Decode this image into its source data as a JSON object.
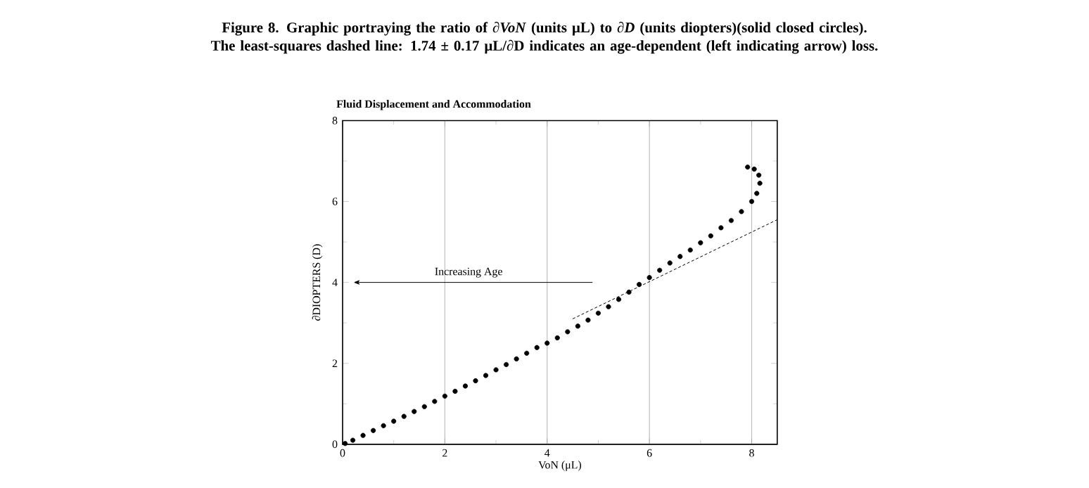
{
  "chart_data": {
    "type": "scatter",
    "title": "Fluid Displacement and Accommodation",
    "xlabel": "VoN (μL)",
    "ylabel": "∂DIOPTERS (D)",
    "xlim": [
      0,
      8.5
    ],
    "ylim": [
      0,
      8
    ],
    "xticks": [
      0,
      2,
      4,
      6,
      8
    ],
    "yticks": [
      0,
      2,
      4,
      6,
      8
    ],
    "grid": "x",
    "marker": "circle",
    "annotations": [
      "Figure 8. Graphic portraying the ratio of *∂VoN* (units µL) to *∂D* (units diopters)(solid closed circles). The least-squares dashed line: 1.74 ± 0.17 µL/∂D indicates an age-dependent (left indicating arrow) loss.",
      "Increasing Age"
    ],
    "series": [
      {
        "color": "#000000",
        "x": [
          0.05,
          0.2,
          0.4,
          0.6,
          0.8,
          1.0,
          1.2,
          1.4,
          1.6,
          1.8,
          2.0,
          2.2,
          2.4,
          2.6,
          2.8,
          3.0,
          3.2,
          3.4,
          3.6,
          3.8,
          4.0,
          4.2,
          4.4,
          4.6,
          4.8,
          5.0,
          5.2,
          5.4,
          5.6,
          5.8,
          6.0,
          6.2,
          6.4,
          6.6,
          6.8,
          7.0,
          7.2,
          7.4,
          7.6,
          7.8,
          8.0,
          8.1,
          8.16,
          8.14,
          8.05,
          7.92
        ],
        "values": [
          0.02,
          0.1,
          0.22,
          0.34,
          0.46,
          0.57,
          0.69,
          0.81,
          0.93,
          1.06,
          1.19,
          1.31,
          1.44,
          1.57,
          1.7,
          1.84,
          1.97,
          2.11,
          2.25,
          2.39,
          2.5,
          2.63,
          2.78,
          2.92,
          3.07,
          3.24,
          3.4,
          3.58,
          3.76,
          3.95,
          4.12,
          4.3,
          4.48,
          4.64,
          4.8,
          4.98,
          5.15,
          5.35,
          5.53,
          5.75,
          6.0,
          6.2,
          6.45,
          6.65,
          6.8,
          6.85
        ]
      },
      {
        "type": "line",
        "color": "#000000",
        "line_style": "dashed",
        "marker": "none",
        "x": [
          4.5,
          8.5
        ],
        "values": [
          3.1,
          5.55
        ]
      }
    ]
  }
}
